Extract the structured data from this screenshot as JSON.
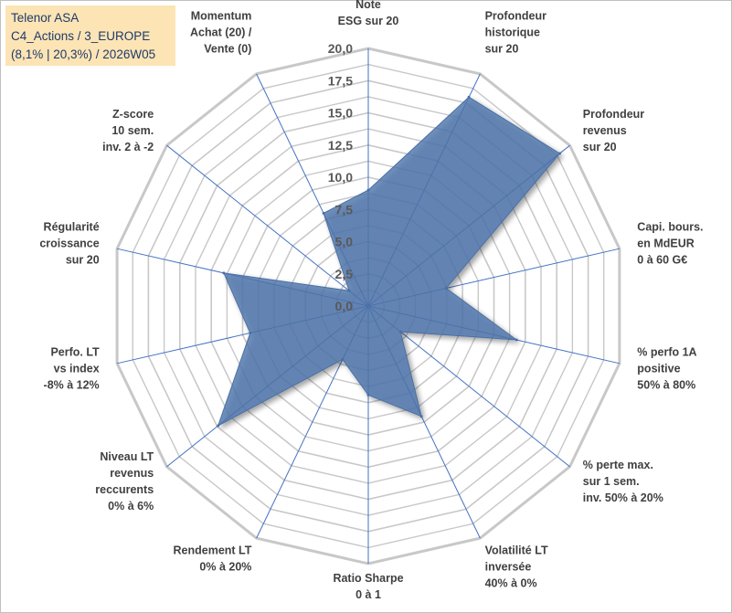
{
  "title_box": {
    "line1": "Telenor ASA",
    "line2": "C4_Actions / 3_EUROPE",
    "line3": "(8,1% | 20,3%) / 2026W05",
    "background_color": "#fce4b5",
    "text_color": "#1f3a68"
  },
  "chart_data": {
    "type": "radar",
    "title": "Telenor ASA",
    "rmin": 0,
    "rmax": 20,
    "grid_step": 2.5,
    "ticks": [
      "0,0",
      "2,5",
      "5,0",
      "7,5",
      "10,0",
      "12,5",
      "15,0",
      "17,5",
      "20,0"
    ],
    "axes": [
      {
        "label": [
          "Note",
          "ESG sur 20"
        ]
      },
      {
        "label": [
          "Profondeur",
          "historique",
          "sur 20"
        ]
      },
      {
        "label": [
          "Profondeur",
          "revenus",
          "sur 20"
        ]
      },
      {
        "label": [
          "Capi. bours.",
          "en MdEUR",
          "0 à 60 G€"
        ]
      },
      {
        "label": [
          "% perfo 1A",
          "positive",
          "50% à 80%"
        ]
      },
      {
        "label": [
          "% perte max.",
          "sur 1 sem.",
          "inv. 50% à 20%"
        ]
      },
      {
        "label": [
          "Volatilité LT",
          "inversée",
          "40% à 0%"
        ]
      },
      {
        "label": [
          "Ratio Sharpe",
          "0 à 1"
        ]
      },
      {
        "label": [
          "Rendement LT",
          "0% à 20%"
        ]
      },
      {
        "label": [
          "Niveau LT",
          "revenus",
          "reccurents",
          "0% à 6%"
        ]
      },
      {
        "label": [
          "Perfo. LT",
          "vs index",
          "-8% à 12%"
        ]
      },
      {
        "label": [
          "Régularité",
          "croissance",
          "sur 20"
        ]
      },
      {
        "label": [
          "Z-score",
          "10 sem.",
          "inv. 2 à -2"
        ]
      },
      {
        "label": [
          "Momentum",
          "Achat (20) /",
          "Vente (0)"
        ]
      }
    ],
    "series": [
      {
        "name": "Telenor ASA",
        "values": [
          9.0,
          18.0,
          19.0,
          6.2,
          11.8,
          3.2,
          9.5,
          6.9,
          4.6,
          14.9,
          9.4,
          11.5,
          1.9,
          8.0
        ],
        "fill_color": "#4f76ad",
        "fill_opacity": 0.8,
        "stroke_color": "#4a6fa5"
      }
    ],
    "grid_color": "#c8c8c8",
    "spoke_color": "#4472c4"
  }
}
